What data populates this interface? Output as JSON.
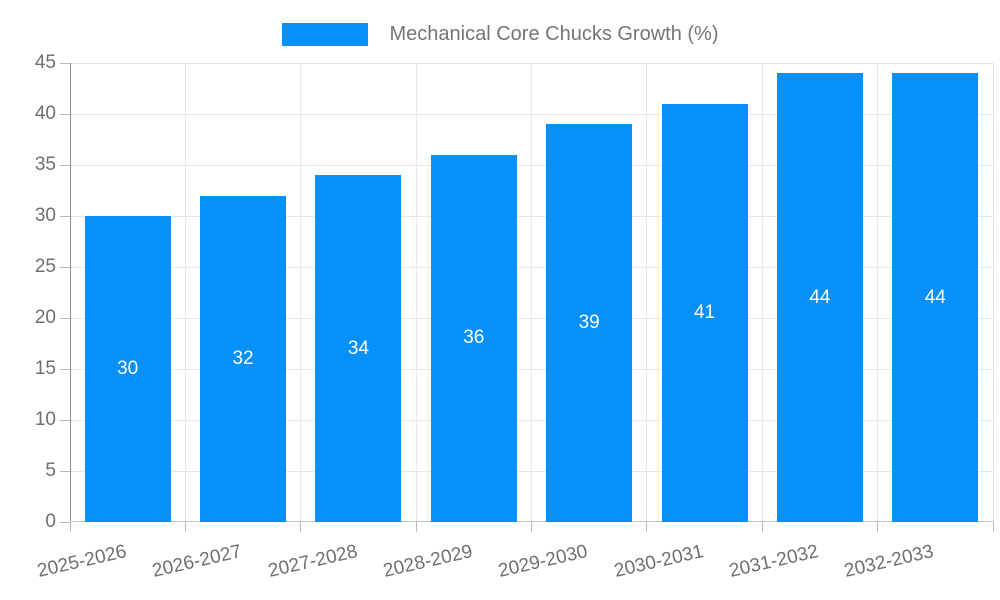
{
  "chart_data": {
    "type": "bar",
    "title": "Mechanical Core Chucks Growth (%)",
    "categories": [
      "2025-2026",
      "2026-2027",
      "2027-2028",
      "2028-2029",
      "2029-2030",
      "2030-2031",
      "2031-2032",
      "2032-2033"
    ],
    "values": [
      30,
      32,
      34,
      36,
      39,
      41,
      44,
      44
    ],
    "ylim": [
      0,
      45
    ],
    "yticks": [
      0,
      5,
      10,
      15,
      20,
      25,
      30,
      35,
      40,
      45
    ],
    "legend_position": "top",
    "grid": "horizontal-and-vertical",
    "colors": {
      "bar": "#0590fa",
      "value_label": "#ffffff",
      "axis_text": "#6f6f6f",
      "legend_text": "#757575",
      "gridline": "#e7e7e7",
      "axis_line_left": "#8c8c8c",
      "axis_line_bottom": "#c4c4c4",
      "tick": "#b9b9b9"
    }
  }
}
